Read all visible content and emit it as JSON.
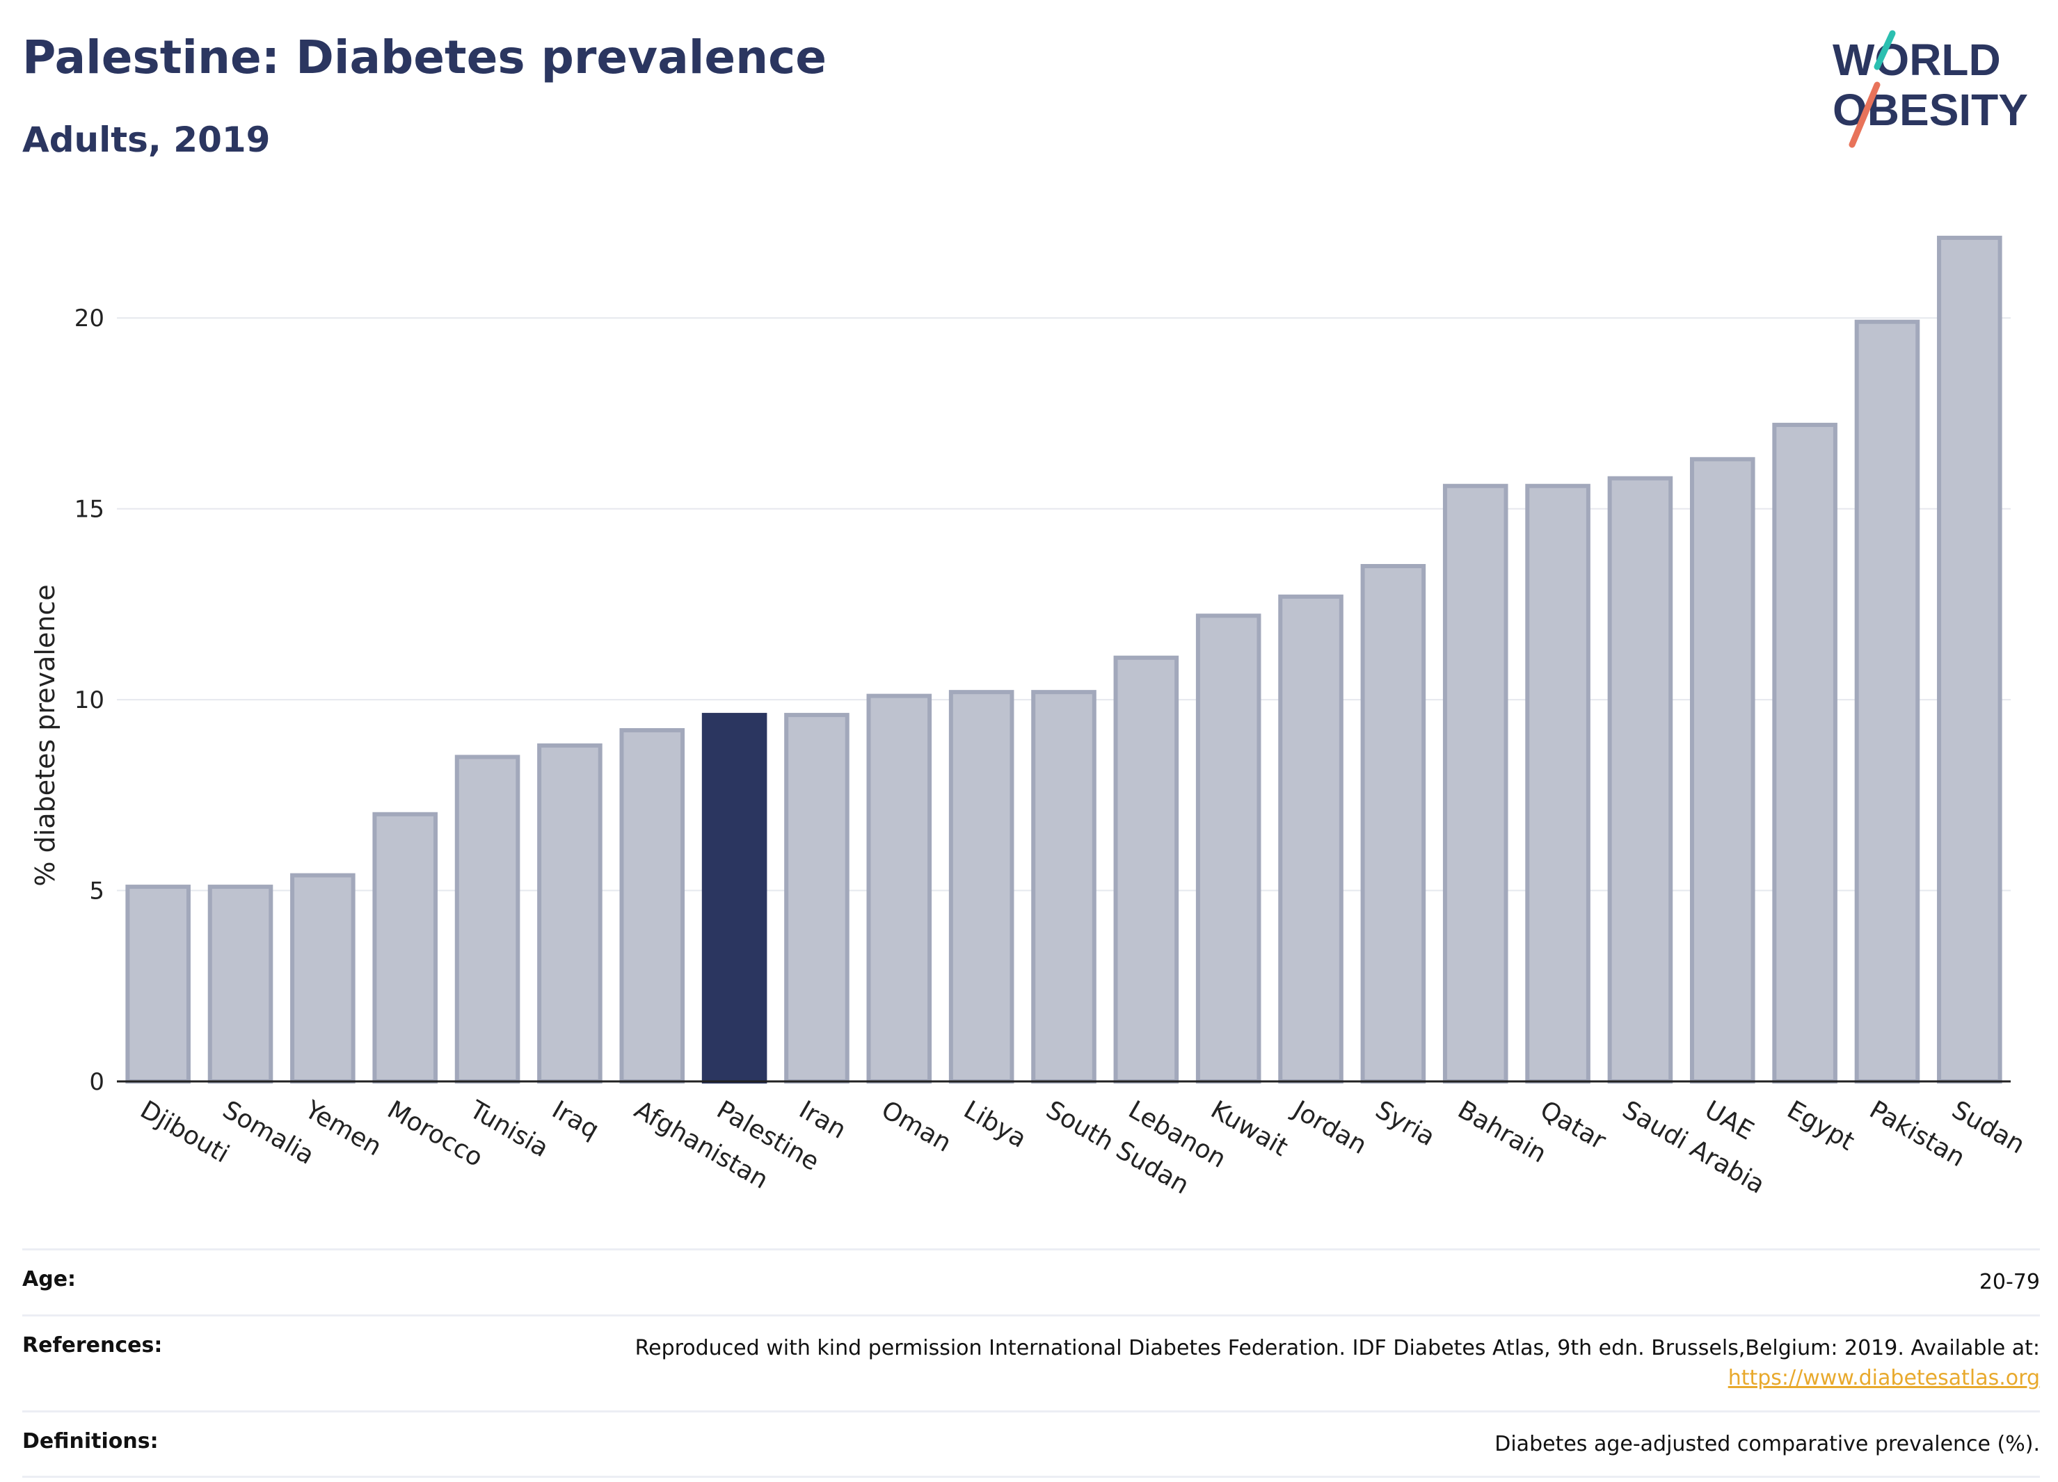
{
  "title": "Palestine: Diabetes prevalence",
  "subtitle": "Adults, 2019",
  "logo": {
    "line1": "WORLD",
    "line2": "OBESITY",
    "accent_colors": [
      "#2bbfb0",
      "#e8735a"
    ],
    "text_color": "#2b3660"
  },
  "colors": {
    "bar": "#bec2cf",
    "bar_stroke": "#a2a8bb",
    "highlight": "#2b3660",
    "grid": "#e6e8ee"
  },
  "chart_data": {
    "type": "bar",
    "title": "",
    "xlabel": "",
    "ylabel": "% diabetes prevalence",
    "ylim": [
      0,
      22.5
    ],
    "yticks": [
      0,
      5,
      10,
      15,
      20
    ],
    "highlight": "Palestine",
    "categories": [
      "Djibouti",
      "Somalia",
      "Yemen",
      "Morocco",
      "Tunisia",
      "Iraq",
      "Afghanistan",
      "Palestine",
      "Iran",
      "Oman",
      "Libya",
      "South Sudan",
      "Lebanon",
      "Kuwait",
      "Jordan",
      "Syria",
      "Bahrain",
      "Qatar",
      "Saudi Arabia",
      "UAE",
      "Egypt",
      "Pakistan",
      "Sudan"
    ],
    "values": [
      5.1,
      5.1,
      5.4,
      7.0,
      8.5,
      8.8,
      9.2,
      9.6,
      9.6,
      10.1,
      10.2,
      10.2,
      11.1,
      12.2,
      12.7,
      13.5,
      15.6,
      15.6,
      15.8,
      16.3,
      17.2,
      19.9,
      22.1
    ]
  },
  "info": {
    "age_label": "Age:",
    "age_value": "20-79",
    "references_label": "References:",
    "references_value": "Reproduced with kind permission International Diabetes Federation. IDF Diabetes Atlas, 9th edn. Brussels,Belgium: 2019. Available at:",
    "references_link": "https://www.diabetesatlas.org",
    "definitions_label": "Definitions:",
    "definitions_value": "Diabetes age-adjusted comparative prevalence (%)."
  }
}
